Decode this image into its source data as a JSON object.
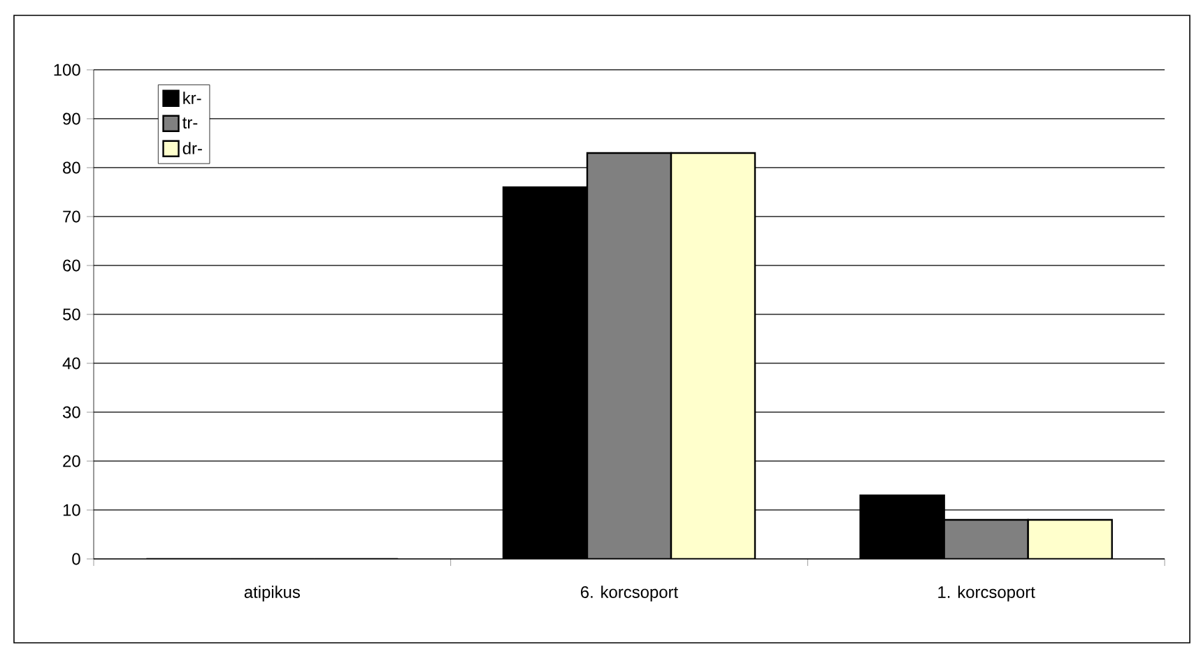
{
  "chart_data": {
    "type": "bar",
    "categories": [
      "atipikus",
      "6. korcsoport",
      "1. korcsoport"
    ],
    "series": [
      {
        "name": "kr-",
        "color": "#000000",
        "values": [
          0,
          76,
          13
        ]
      },
      {
        "name": "tr-",
        "color": "#808080",
        "values": [
          0,
          83,
          8
        ]
      },
      {
        "name": "dr-",
        "color": "#ffffcc",
        "values": [
          0,
          83,
          8
        ]
      }
    ],
    "ylim": [
      0,
      100
    ],
    "yticks": [
      0,
      10,
      20,
      30,
      40,
      50,
      60,
      70,
      80,
      90,
      100
    ],
    "grid": "y",
    "legend": "top left"
  }
}
